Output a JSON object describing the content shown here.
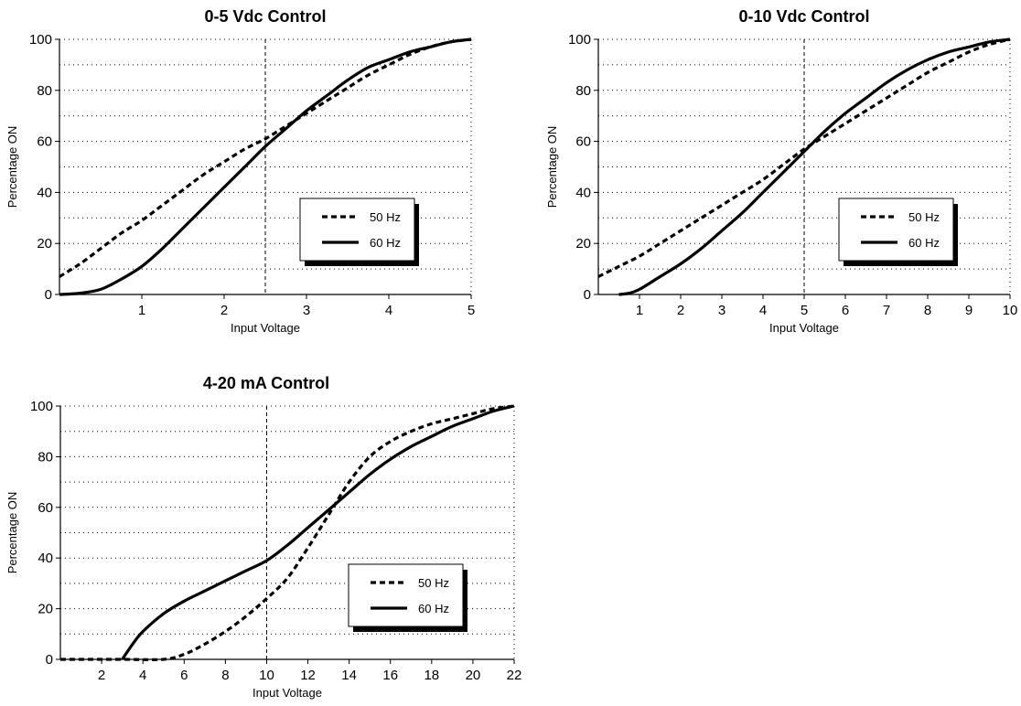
{
  "chart_data": [
    {
      "type": "line",
      "title": "0-5 Vdc Control",
      "xlabel": "Input Voltage",
      "ylabel": "Percentage ON",
      "xlim": [
        0,
        5
      ],
      "ylim": [
        0,
        100
      ],
      "xticks": [
        1,
        2,
        3,
        4,
        5
      ],
      "yticks": [
        0,
        20,
        40,
        60,
        80,
        100
      ],
      "grid": "horizontal dotted",
      "reference_line_x": 2.5,
      "legend": "right",
      "series": [
        {
          "name": "50 Hz",
          "style": "dashed",
          "x": [
            0,
            0.25,
            0.5,
            0.75,
            1,
            1.25,
            1.5,
            1.75,
            2,
            2.25,
            2.5,
            2.75,
            3,
            3.25,
            3.5,
            3.75,
            4,
            4.25,
            4.5,
            4.75,
            5
          ],
          "y": [
            7,
            12,
            18,
            24,
            29,
            35,
            41,
            47,
            52,
            57,
            61,
            66,
            71,
            76,
            81,
            86,
            90,
            94,
            97,
            99,
            100
          ]
        },
        {
          "name": "60 Hz",
          "style": "solid",
          "x": [
            0,
            0.25,
            0.5,
            0.75,
            1,
            1.25,
            1.5,
            1.75,
            2,
            2.25,
            2.5,
            2.75,
            3,
            3.25,
            3.5,
            3.75,
            4,
            4.25,
            4.5,
            4.75,
            5
          ],
          "y": [
            0,
            0.5,
            2,
            6,
            11,
            18,
            26,
            34,
            42,
            50,
            58,
            65,
            72,
            78,
            84,
            89,
            92,
            95,
            97,
            99,
            100
          ]
        }
      ]
    },
    {
      "type": "line",
      "title": "0-10 Vdc Control",
      "xlabel": "Input Voltage",
      "ylabel": "Percentage ON",
      "xlim": [
        0,
        10
      ],
      "ylim": [
        0,
        100
      ],
      "xticks": [
        1,
        2,
        3,
        4,
        5,
        6,
        7,
        8,
        9,
        10
      ],
      "yticks": [
        0,
        20,
        40,
        60,
        80,
        100
      ],
      "grid": "horizontal dotted",
      "reference_line_x": 5,
      "legend": "right",
      "series": [
        {
          "name": "50 Hz",
          "style": "dashed",
          "x": [
            0,
            0.5,
            1,
            1.5,
            2,
            2.5,
            3,
            3.5,
            4,
            4.5,
            5,
            5.5,
            6,
            6.5,
            7,
            7.5,
            8,
            8.5,
            9,
            9.5,
            10
          ],
          "y": [
            7,
            11,
            15,
            20,
            25,
            30,
            35,
            40,
            45,
            51,
            57,
            62,
            67,
            72,
            77,
            82,
            87,
            91,
            95,
            98,
            100
          ]
        },
        {
          "name": "60 Hz",
          "style": "solid",
          "x": [
            0.5,
            0.75,
            1,
            1.5,
            2,
            2.5,
            3,
            3.5,
            4,
            4.5,
            5,
            5.5,
            6,
            6.5,
            7,
            7.5,
            8,
            8.5,
            9,
            9.5,
            10
          ],
          "y": [
            0,
            0.5,
            2,
            7,
            12,
            18,
            25,
            32,
            40,
            48,
            56,
            64,
            71,
            77,
            83,
            88,
            92,
            95,
            97,
            99,
            100
          ]
        }
      ]
    },
    {
      "type": "line",
      "title": "4-20 mA Control",
      "xlabel": "Input Voltage",
      "ylabel": "Percentage ON",
      "xlim": [
        0,
        22
      ],
      "ylim": [
        0,
        100
      ],
      "xticks": [
        2,
        4,
        6,
        8,
        10,
        12,
        14,
        16,
        18,
        20,
        22
      ],
      "yticks": [
        0,
        20,
        40,
        60,
        80,
        100
      ],
      "grid": "horizontal dotted",
      "reference_line_x": 10,
      "legend": "right",
      "series": [
        {
          "name": "50 Hz",
          "style": "dashed",
          "x": [
            0,
            3,
            5,
            6,
            7,
            8,
            9,
            10,
            11,
            12,
            13,
            14,
            15,
            16,
            17,
            18,
            19,
            20,
            21,
            22
          ],
          "y": [
            0,
            0,
            0,
            2,
            6,
            11,
            17,
            24,
            32,
            44,
            57,
            70,
            80,
            86,
            90,
            93,
            95,
            97,
            99,
            100
          ]
        },
        {
          "name": "60 Hz",
          "style": "solid",
          "x": [
            3,
            3.5,
            4,
            5,
            6,
            7,
            8,
            9,
            10,
            11,
            12,
            13,
            14,
            15,
            16,
            17,
            18,
            19,
            20,
            21,
            22
          ],
          "y": [
            0,
            6,
            11,
            18,
            23,
            27,
            31,
            35,
            39,
            45,
            52,
            59,
            66,
            73,
            79,
            84,
            88,
            92,
            95,
            98,
            100
          ]
        },
        {
          "name": "",
          "style": "solid",
          "role": "zero-segment",
          "x": [
            0,
            3
          ],
          "y": [
            0,
            0
          ]
        }
      ]
    }
  ]
}
